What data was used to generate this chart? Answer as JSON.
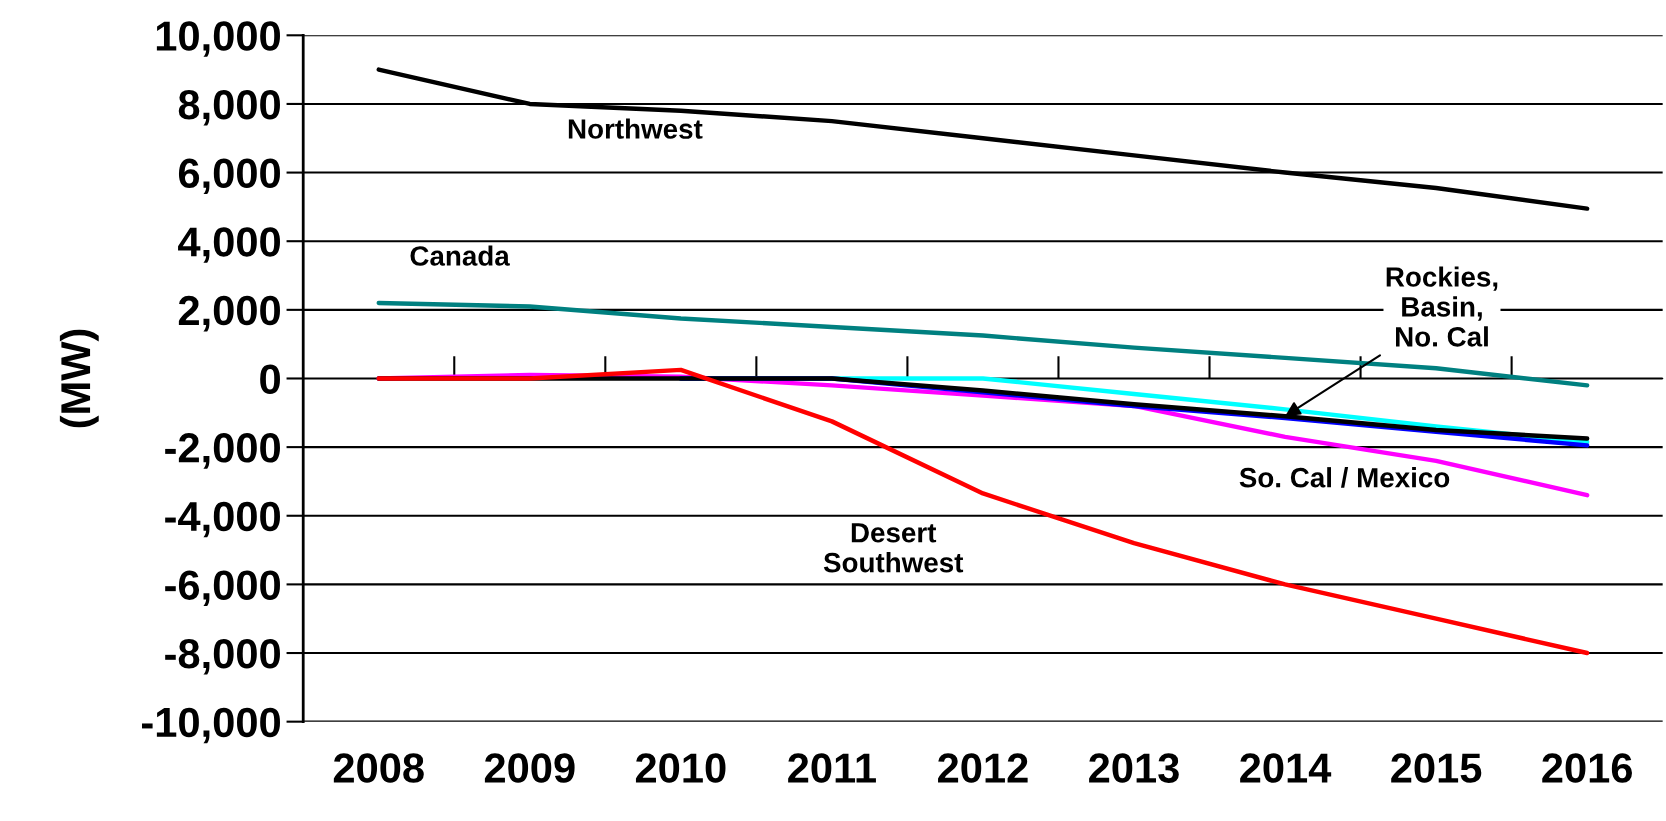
{
  "chart_data": {
    "type": "line",
    "ylabel": "(MW)",
    "categories": [
      "2008",
      "2009",
      "2010",
      "2011",
      "2012",
      "2013",
      "2014",
      "2015",
      "2016"
    ],
    "ylim": [
      -10000,
      10000
    ],
    "yticks": [
      {
        "value": -10000,
        "label": "-10,000"
      },
      {
        "value": -8000,
        "label": "-8,000"
      },
      {
        "value": -6000,
        "label": "-6,000"
      },
      {
        "value": -4000,
        "label": "-4,000"
      },
      {
        "value": -2000,
        "label": "-2,000"
      },
      0,
      {
        "value": 2000,
        "label": "2,000"
      },
      {
        "value": 4000,
        "label": "4,000"
      },
      {
        "value": 6000,
        "label": "6,000"
      },
      {
        "value": 8000,
        "label": "8,000"
      },
      {
        "value": 10000,
        "label": "10,000"
      }
    ],
    "grid": "y",
    "legend": false,
    "marker": "none",
    "line_style": "solid",
    "series": [
      {
        "color": "#000000",
        "values": [
          9000,
          8000,
          7800,
          7500,
          7000,
          6500,
          6000,
          5550,
          4950
        ]
      },
      {
        "color": "#008080",
        "values": [
          2200,
          2100,
          1750,
          1500,
          1250,
          900,
          600,
          300,
          -200
        ]
      },
      {
        "color": "#ff00ff",
        "values": [
          0,
          100,
          50,
          -200,
          -500,
          -800,
          -1700,
          -2400,
          -3400
        ]
      },
      {
        "color": "#00ffff",
        "values": [
          null,
          null,
          0,
          0,
          0,
          -450,
          -900,
          -1400,
          -1850
        ]
      },
      {
        "color": "#0000ff",
        "values": [
          null,
          null,
          0,
          0,
          -400,
          -800,
          -1150,
          -1550,
          -1950
        ]
      },
      {
        "color": "#000000",
        "values": [
          0,
          0,
          0,
          0,
          -350,
          -750,
          -1100,
          -1500,
          -1750
        ]
      },
      {
        "color": "#ff0000",
        "values": [
          0,
          0,
          250,
          -1250,
          -3350,
          -4800,
          -6000,
          -7000,
          -8000
        ]
      }
    ],
    "annotations": [
      "Northwest",
      "Canada",
      "Desert\nSouthwest",
      "So. Cal / Mexico",
      {
        "text": "Rockies,\nBasin,\nNo. Cal",
        "x": "2014",
        "y": -1100
      }
    ]
  }
}
